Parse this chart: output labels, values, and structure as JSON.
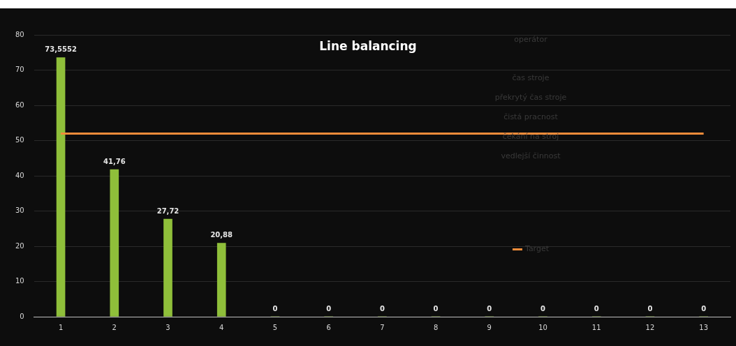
{
  "chart_data": {
    "type": "bar",
    "title": "Line balancing",
    "categories": [
      "1",
      "2",
      "3",
      "4",
      "5",
      "6",
      "7",
      "8",
      "9",
      "10",
      "11",
      "12",
      "13"
    ],
    "series": [
      {
        "color": "#8fbf3a",
        "values": [
          73.5552,
          41.76,
          27.72,
          20.88,
          0,
          0,
          0,
          0,
          0,
          0,
          0,
          0,
          0
        ],
        "value_labels": [
          "73,5552",
          "41,76",
          "27,72",
          "20,88",
          "0",
          "0",
          "0",
          "0",
          "0",
          "0",
          "0",
          "0",
          "0"
        ]
      },
      {
        "type": "line",
        "name": "Target",
        "color": "#f28c3a",
        "values": [
          52,
          52,
          52,
          52,
          52,
          52,
          52,
          52,
          52,
          52,
          52,
          52,
          52
        ]
      }
    ],
    "annotations": [
      "operátor",
      "čas stroje",
      "překrytý čas stroje",
      "čistá pracnost",
      "čekání na stroj",
      "vedlejší činnost"
    ],
    "ylim": [
      0,
      80
    ],
    "yticks": [
      0,
      10,
      20,
      30,
      40,
      50,
      60,
      70,
      80
    ],
    "grid": "y",
    "legend": "right",
    "marker": "none"
  }
}
